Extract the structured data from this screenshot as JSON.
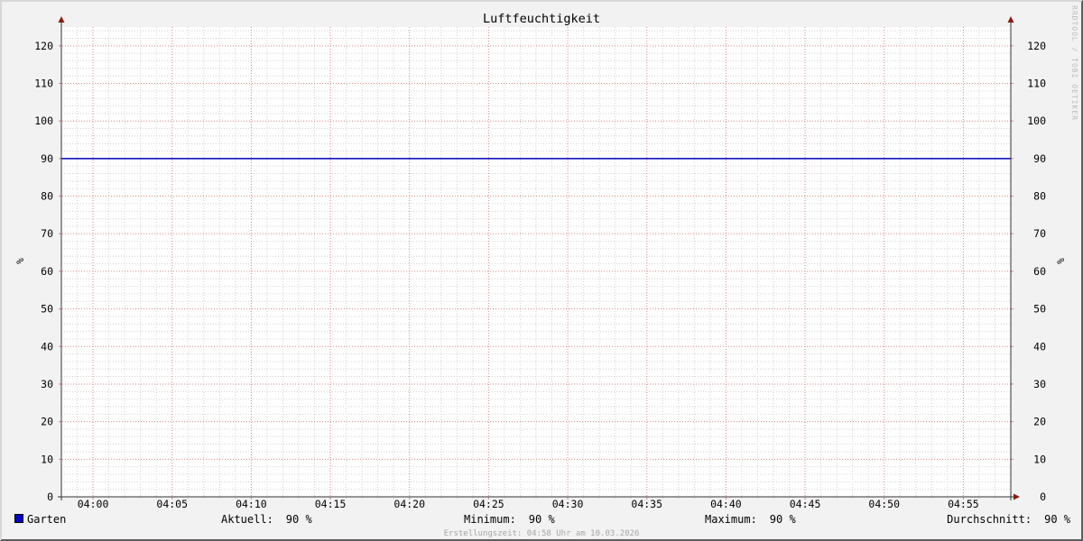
{
  "colors": {
    "background": "#f2f2f2",
    "plot_background": "#ffffff",
    "grid_minor": "#d2d2d2",
    "grid_major": "#dd8888",
    "axis": "#333333",
    "arrow": "#8b1c0e",
    "series": "#0000bb",
    "legend_swatch": "#0000cc",
    "muted_text": "#a6a6a6",
    "watermark_text": "#bdbdbd"
  },
  "chart_data": {
    "type": "line",
    "title": "Luftfeuchtigkeit",
    "ylabel": "%",
    "ylabel_right": "%",
    "ylim": [
      0,
      125
    ],
    "y_major_step": 10,
    "y_minor_step": 2,
    "y_label_max": 120,
    "x_start": "03:58",
    "x_end": "04:58",
    "x_major_step_min": 5,
    "x_minor_step_min": 1,
    "x_tick_labels": [
      "04:00",
      "04:05",
      "04:10",
      "04:15",
      "04:20",
      "04:25",
      "04:30",
      "04:35",
      "04:40",
      "04:45",
      "04:50",
      "04:55"
    ],
    "grid": true,
    "legend_position": "bottom",
    "series": [
      {
        "name": "Garten",
        "color": "#0000bb",
        "x": [
          "03:58",
          "04:58"
        ],
        "values": [
          90,
          90
        ]
      }
    ],
    "stats": {
      "aktuell": "90 %",
      "minimum": "90 %",
      "maximum": "90 %",
      "durchschnitt": "90 %"
    }
  },
  "legend": {
    "series_label": "Garten",
    "stats": [
      {
        "label": "Aktuell:",
        "value": "90 %"
      },
      {
        "label": "Minimum:",
        "value": "90 %"
      },
      {
        "label": "Maximum:",
        "value": "90 %"
      },
      {
        "label": "Durchschnitt:",
        "value": "90 %"
      }
    ]
  },
  "footer": {
    "created_text": "Erstellungszeit: 04:58 Uhr am 10.03.2026"
  },
  "watermark": "RRDTOOL / TOBI OETIKER"
}
